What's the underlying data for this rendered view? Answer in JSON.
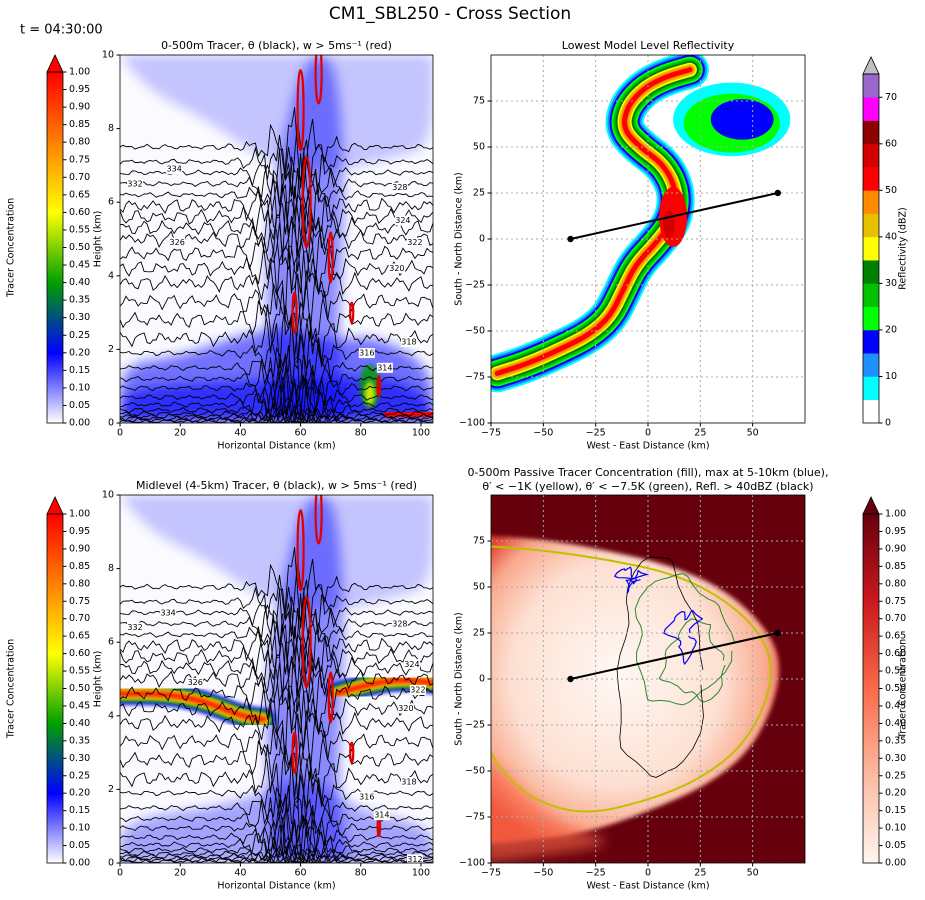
{
  "title": "CM1_SBL250 - Cross Section",
  "time_label": "t = 04:30:00",
  "chart_data": [
    {
      "type": "contour",
      "title": "0-500m Tracer, θ (black), w > 5ms⁻¹ (red)",
      "xlabel": "Horizontal Distance (km)",
      "ylabel": "Height (km)",
      "xlim": [
        0,
        104
      ],
      "ylim": [
        0,
        10
      ],
      "xticks": [
        0,
        20,
        40,
        60,
        80,
        100
      ],
      "yticks": [
        0,
        2,
        4,
        6,
        8,
        10
      ],
      "contour_labels": [
        334,
        332,
        326,
        328,
        324,
        322,
        320,
        318,
        316,
        314
      ],
      "colorbar": {
        "label": "Tracer Concentration",
        "lim": [
          0,
          1
        ],
        "extend": "max",
        "extend_color": "#ff0000",
        "colors": [
          "#ffffff",
          "#0000ff",
          "#00a000",
          "#ffff00",
          "#ff8000",
          "#ff0000"
        ],
        "ticks": [
          {
            "value": 0,
            "label": "0.00"
          },
          {
            "value": 0.05,
            "label": "0.05"
          },
          {
            "value": 0.1,
            "label": "0.10"
          },
          {
            "value": 0.15,
            "label": "0.15"
          },
          {
            "value": 0.2,
            "label": "0.20"
          },
          {
            "value": 0.25,
            "label": "0.25"
          },
          {
            "value": 0.3,
            "label": "0.30"
          },
          {
            "value": 0.35,
            "label": "0.35"
          },
          {
            "value": 0.4,
            "label": "0.40"
          },
          {
            "value": 0.45,
            "label": "0.45"
          },
          {
            "value": 0.5,
            "label": "0.50"
          },
          {
            "value": 0.55,
            "label": "0.55"
          },
          {
            "value": 0.6,
            "label": "0.60"
          },
          {
            "value": 0.65,
            "label": "0.65"
          },
          {
            "value": 0.7,
            "label": "0.70"
          },
          {
            "value": 0.75,
            "label": "0.75"
          },
          {
            "value": 0.8,
            "label": "0.80"
          },
          {
            "value": 0.85,
            "label": "0.85"
          },
          {
            "value": 0.9,
            "label": "0.90"
          },
          {
            "value": 0.95,
            "label": "0.95"
          },
          {
            "value": 1,
            "label": "1.00"
          }
        ]
      }
    },
    {
      "type": "reflectivity",
      "title": "Lowest Model Level Reflectivity",
      "xlabel": "West - East Distance (km)",
      "ylabel": "South - North Distance (km)",
      "xlim": [
        -75,
        75
      ],
      "ylim": [
        -100,
        100
      ],
      "xticks": [
        {
          "value": -75,
          "label": "−75"
        },
        {
          "value": -50,
          "label": "−50"
        },
        {
          "value": -25,
          "label": "−25"
        },
        0,
        25,
        50
      ],
      "yticks": [
        {
          "value": -100,
          "label": "−100"
        },
        {
          "value": -75,
          "label": "−75"
        },
        {
          "value": -50,
          "label": "−50"
        },
        {
          "value": -25,
          "label": "−25"
        },
        0,
        25,
        50,
        75
      ],
      "grid": true,
      "line": {
        "x": [
          -37,
          62
        ],
        "y": [
          0,
          25
        ],
        "color": "#000000"
      },
      "colorbar": {
        "label": "Reflectivity (dBZ)",
        "lim": [
          0,
          75
        ],
        "extend": "max",
        "extend_color": "#c0c0c0",
        "colors": [
          "#ffffff",
          "#00ffff",
          "#1e90ff",
          "#0000ff",
          "#00ff00",
          "#00c000",
          "#008000",
          "#ffff00",
          "#e7c000",
          "#ff8c00",
          "#ff0000",
          "#d40000",
          "#8b0000",
          "#ff00ff",
          "#9966cc"
        ],
        "ticks": [
          0,
          10,
          20,
          30,
          40,
          50,
          60,
          70
        ]
      }
    },
    {
      "type": "contour",
      "title": "Midlevel (4-5km) Tracer, θ (black), w > 5ms⁻¹ (red)",
      "xlabel": "Horizontal Distance (km)",
      "ylabel": "Height (km)",
      "xlim": [
        0,
        104
      ],
      "ylim": [
        0,
        10
      ],
      "xticks": [
        0,
        20,
        40,
        60,
        80,
        100
      ],
      "yticks": [
        0,
        2,
        4,
        6,
        8,
        10
      ],
      "band": true,
      "contour_labels": [
        334,
        332,
        328,
        324,
        326,
        322,
        320,
        318,
        316,
        314,
        312
      ],
      "colorbar": {
        "label": "Tracer Concentration",
        "lim": [
          0,
          1
        ],
        "extend": "max",
        "extend_color": "#ff0000",
        "colors": [
          "#ffffff",
          "#0000ff",
          "#00a000",
          "#ffff00",
          "#ff8000",
          "#ff0000"
        ],
        "ticks": [
          {
            "value": 0,
            "label": "0.00"
          },
          {
            "value": 0.05,
            "label": "0.05"
          },
          {
            "value": 0.1,
            "label": "0.10"
          },
          {
            "value": 0.15,
            "label": "0.15"
          },
          {
            "value": 0.2,
            "label": "0.20"
          },
          {
            "value": 0.25,
            "label": "0.25"
          },
          {
            "value": 0.3,
            "label": "0.30"
          },
          {
            "value": 0.35,
            "label": "0.35"
          },
          {
            "value": 0.4,
            "label": "0.40"
          },
          {
            "value": 0.45,
            "label": "0.45"
          },
          {
            "value": 0.5,
            "label": "0.50"
          },
          {
            "value": 0.55,
            "label": "0.55"
          },
          {
            "value": 0.6,
            "label": "0.60"
          },
          {
            "value": 0.65,
            "label": "0.65"
          },
          {
            "value": 0.7,
            "label": "0.70"
          },
          {
            "value": 0.75,
            "label": "0.75"
          },
          {
            "value": 0.8,
            "label": "0.80"
          },
          {
            "value": 0.85,
            "label": "0.85"
          },
          {
            "value": 0.9,
            "label": "0.90"
          },
          {
            "value": 0.95,
            "label": "0.95"
          },
          {
            "value": 1,
            "label": "1.00"
          }
        ]
      }
    },
    {
      "type": "tracer_map",
      "title": [
        "0-500m Passive Tracer Concentration (fill), max at 5-10km (blue),",
        "θ′ < −1K (yellow), θ′ < −7.5K (green), Refl. > 40dBZ (black)"
      ],
      "xlabel": "West - East Distance (km)",
      "ylabel": "South - North Distance (km)",
      "xlim": [
        -75,
        75
      ],
      "ylim": [
        -100,
        100
      ],
      "xticks": [
        {
          "value": -75,
          "label": "−75"
        },
        {
          "value": -50,
          "label": "−50"
        },
        {
          "value": -25,
          "label": "−25"
        },
        0,
        25,
        50
      ],
      "yticks": [
        {
          "value": -100,
          "label": "−100"
        },
        {
          "value": -75,
          "label": "−75"
        },
        {
          "value": -50,
          "label": "−50"
        },
        {
          "value": -25,
          "label": "−25"
        },
        0,
        25,
        50,
        75
      ],
      "grid": true,
      "line": {
        "x": [
          -37,
          62
        ],
        "y": [
          0,
          25
        ],
        "color": "#000000"
      },
      "colorbar": {
        "label": "Tracer Concentration",
        "lim": [
          0,
          1
        ],
        "extend": "max",
        "extend_color": "#67000d",
        "colors": [
          "#fff5f0",
          "#fcbba1",
          "#fb6a4a",
          "#cb181d",
          "#67000d"
        ],
        "ticks": [
          {
            "value": 0,
            "label": "0.00"
          },
          {
            "value": 0.05,
            "label": "0.05"
          },
          {
            "value": 0.1,
            "label": "0.10"
          },
          {
            "value": 0.15,
            "label": "0.15"
          },
          {
            "value": 0.2,
            "label": "0.20"
          },
          {
            "value": 0.25,
            "label": "0.25"
          },
          {
            "value": 0.3,
            "label": "0.30"
          },
          {
            "value": 0.35,
            "label": "0.35"
          },
          {
            "value": 0.4,
            "label": "0.40"
          },
          {
            "value": 0.45,
            "label": "0.45"
          },
          {
            "value": 0.5,
            "label": "0.50"
          },
          {
            "value": 0.55,
            "label": "0.55"
          },
          {
            "value": 0.6,
            "label": "0.60"
          },
          {
            "value": 0.65,
            "label": "0.65"
          },
          {
            "value": 0.7,
            "label": "0.70"
          },
          {
            "value": 0.75,
            "label": "0.75"
          },
          {
            "value": 0.8,
            "label": "0.80"
          },
          {
            "value": 0.85,
            "label": "0.85"
          },
          {
            "value": 0.9,
            "label": "0.90"
          },
          {
            "value": 0.95,
            "label": "0.95"
          },
          {
            "value": 1,
            "label": "1.00"
          }
        ]
      }
    }
  ]
}
